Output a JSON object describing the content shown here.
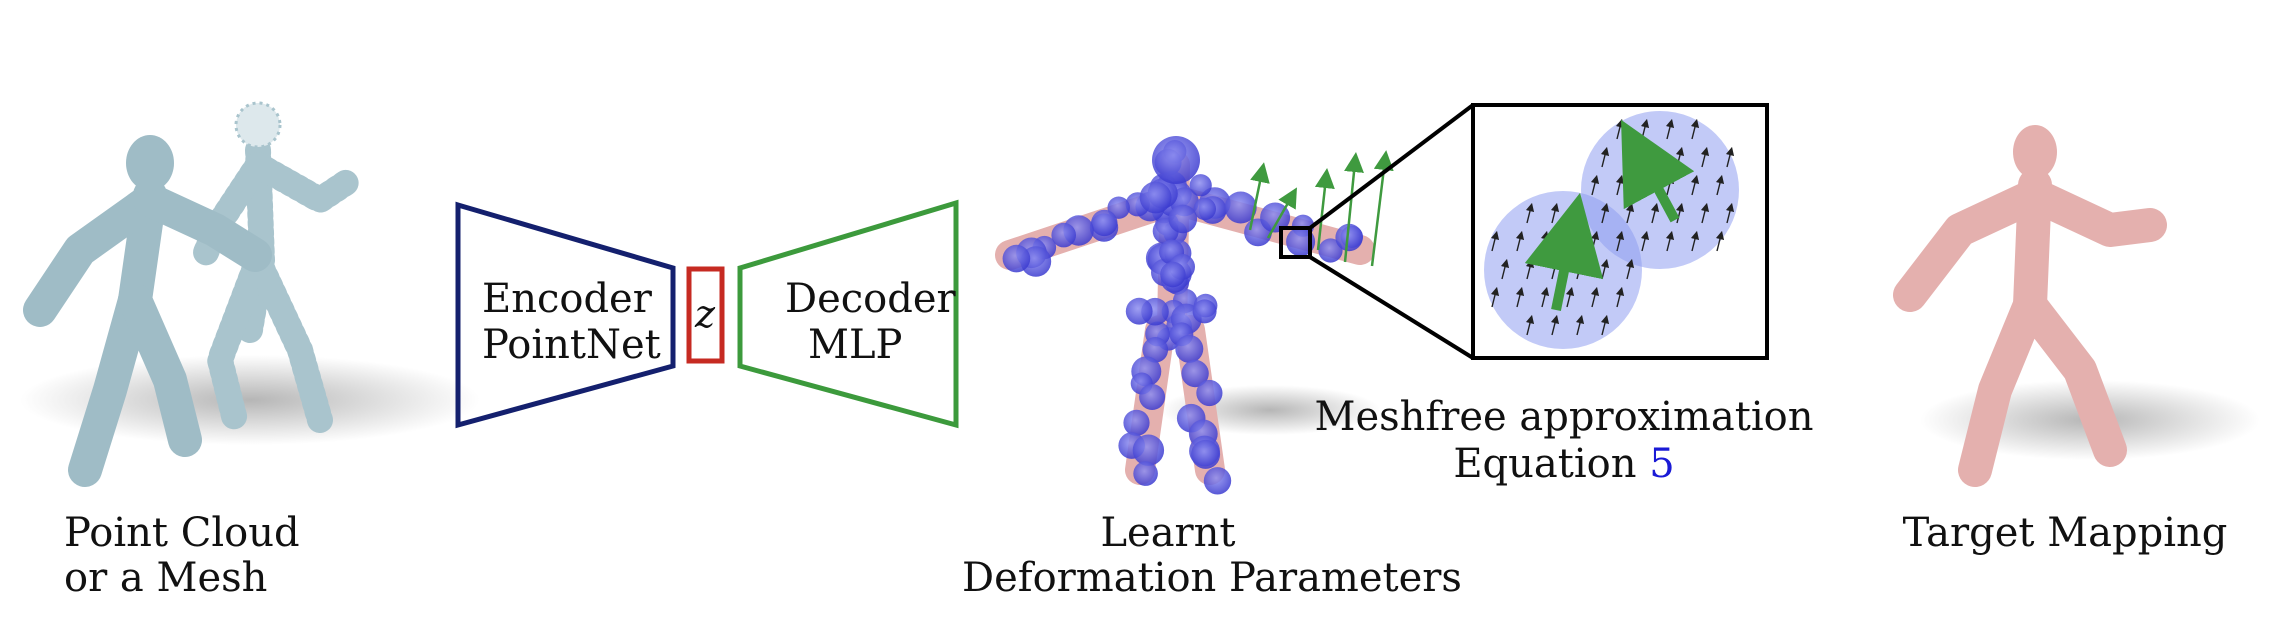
{
  "labels": {
    "input_line1": "Point Cloud",
    "input_line2": "or a Mesh",
    "encoder_line1": "Encoder",
    "encoder_line2": "PointNet",
    "latent": "z",
    "decoder_line1": "Decoder",
    "decoder_line2": "MLP",
    "learnt_line1": "Learnt",
    "learnt_line2": "Deformation Parameters",
    "meshfree_line1": "Meshfree approximation",
    "meshfree_line2_prefix": "Equation",
    "meshfree_eq_ref": "5",
    "target": "Target Mapping"
  },
  "colors": {
    "encoder": "#14206e",
    "latent": "#c62a22",
    "decoder": "#3c9a3c",
    "arrow_green": "#3f9a3f",
    "mesh_blue": "#9fbcc6",
    "mesh_pink": "#e4b0ae",
    "particle_blue": "#5a5adf",
    "link_blue": "#1a1ad6"
  }
}
